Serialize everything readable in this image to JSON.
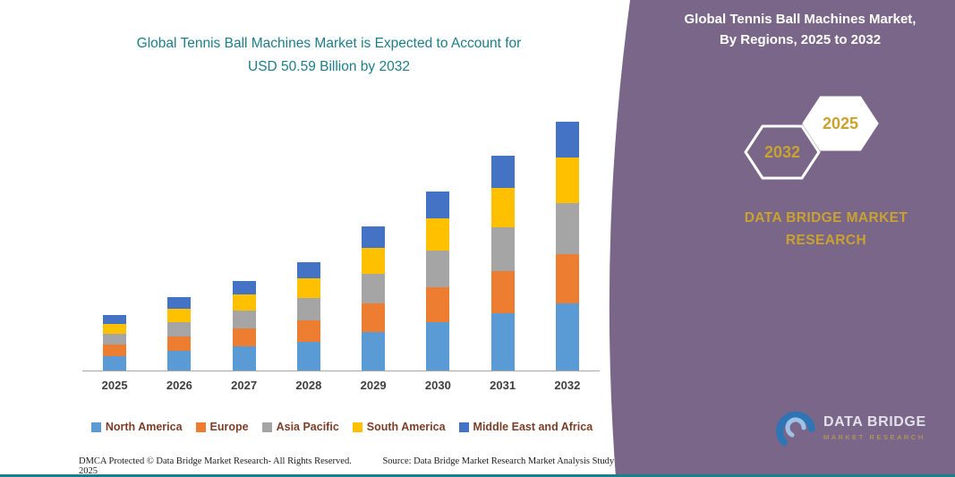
{
  "colors": {
    "teal": "#1B7E8A",
    "purple": "#796688",
    "gold": "#C9A22F",
    "legend_text": "#7C3E27"
  },
  "main": {
    "title_line1": "Global Tennis Ball Machines Market is Expected to Account for",
    "title_line2": "USD 50.59 Billion by 2032"
  },
  "panel": {
    "title_line1": "Global Tennis Ball Machines Market,",
    "title_line2": "By Regions, 2025 to 2032",
    "hexagons": [
      {
        "label": "2032"
      },
      {
        "label": "2025"
      }
    ],
    "brand_line1": "DATA BRIDGE MARKET",
    "brand_line2": "RESEARCH",
    "logo_title": "DATA BRIDGE",
    "logo_subtitle": "MARKET RESEARCH"
  },
  "footer": {
    "dmca": "DMCA Protected © Data Bridge Market Research- All Rights Reserved.",
    "source": "Source: Data Bridge Market Research Market Analysis Study 2025"
  },
  "chart_data": {
    "type": "bar",
    "stacked": true,
    "title": "Global Tennis Ball Machines Market is Expected to Account for USD 50.59 Billion by 2032",
    "unit": "USD Billion",
    "total_2032": 50.59,
    "categories": [
      "2025",
      "2026",
      "2027",
      "2028",
      "2029",
      "2030",
      "2031",
      "2032"
    ],
    "series": [
      {
        "name": "North America",
        "color": "#5B9BD5",
        "values": [
          3.0,
          4.0,
          4.9,
          5.9,
          7.9,
          9.8,
          11.7,
          13.7
        ]
      },
      {
        "name": "Europe",
        "color": "#ED7D31",
        "values": [
          2.2,
          2.9,
          3.6,
          4.3,
          5.7,
          7.1,
          8.5,
          9.9
        ]
      },
      {
        "name": "Asia Pacific",
        "color": "#A5A5A5",
        "values": [
          2.3,
          3.0,
          3.7,
          4.5,
          6.0,
          7.4,
          8.9,
          10.4
        ]
      },
      {
        "name": "South America",
        "color": "#FFC000",
        "values": [
          2.0,
          2.7,
          3.3,
          4.0,
          5.3,
          6.6,
          7.9,
          9.2
        ]
      },
      {
        "name": "Middle East and Africa",
        "color": "#4472C4",
        "values": [
          1.8,
          2.3,
          2.7,
          3.3,
          4.4,
          5.5,
          6.6,
          7.4
        ]
      }
    ],
    "xlabel": "",
    "ylabel": "",
    "ylim": [
      0,
      55
    ],
    "grid": false,
    "y_axis_visible": false,
    "legend_position": "bottom"
  }
}
